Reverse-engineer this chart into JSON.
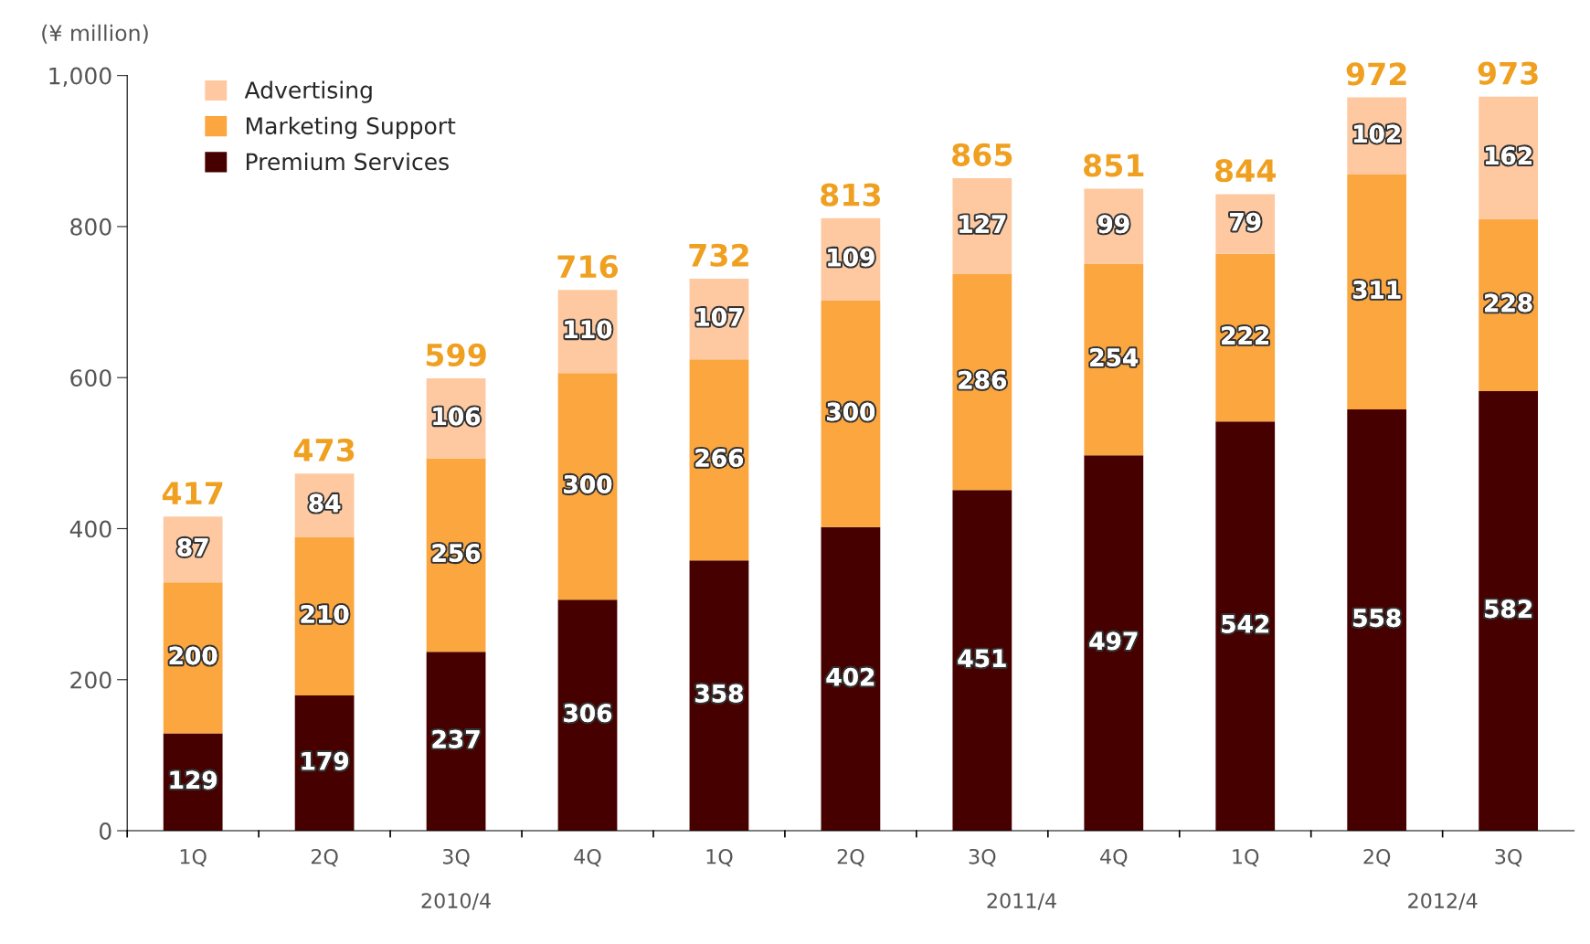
{
  "chart_data": {
    "type": "bar",
    "stacked": true,
    "ylabel": "(¥ million)",
    "categories": [
      "1Q",
      "2Q",
      "3Q",
      "4Q",
      "1Q",
      "2Q",
      "3Q",
      "4Q",
      "1Q",
      "2Q",
      "3Q"
    ],
    "series": [
      {
        "name": "Premium Services",
        "color": "#470000",
        "values": [
          129,
          179,
          237,
          306,
          358,
          402,
          451,
          497,
          542,
          558,
          582
        ]
      },
      {
        "name": "Marketing Support",
        "color": "#fba63f",
        "values": [
          200,
          210,
          256,
          300,
          266,
          300,
          286,
          254,
          222,
          311,
          228
        ]
      },
      {
        "name": "Advertising",
        "color": "#fec9a0",
        "values": [
          87,
          84,
          106,
          110,
          107,
          109,
          127,
          99,
          79,
          102,
          162
        ]
      }
    ],
    "totals": [
      "417",
      "473",
      "599",
      "716",
      "732",
      "813",
      "865",
      "851",
      "844",
      "972",
      "973"
    ],
    "data_labels": true,
    "ylim": [
      0,
      1000
    ],
    "yticks": [
      0,
      200,
      400,
      600,
      800,
      {
        "value": 1000,
        "label": "1,000"
      }
    ],
    "grid": false,
    "legend": "top left",
    "annotations": [
      "2010/4",
      "2011/4",
      "2012/4"
    ]
  }
}
